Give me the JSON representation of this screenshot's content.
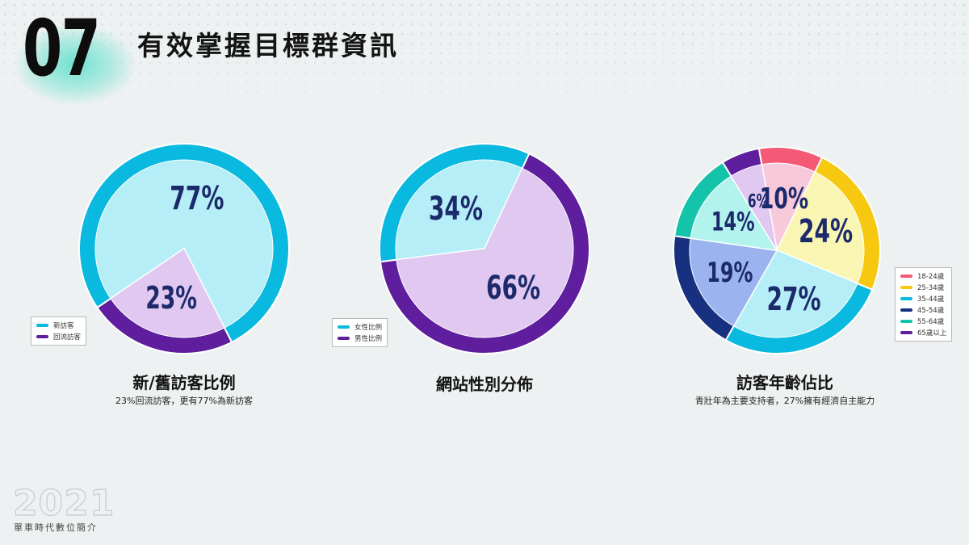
{
  "header": {
    "section_number": "07",
    "title": "有效掌握目標群資訊"
  },
  "footer": {
    "year": "2021",
    "tagline": "單車時代數位簡介"
  },
  "charts": [
    {
      "title": "新/舊訪客比例",
      "subtitle": "23%回流訪客，更有77%為新訪客",
      "legend": [
        "新訪客",
        "回流訪客"
      ]
    },
    {
      "title": "網站性別分佈",
      "subtitle": "",
      "legend": [
        "女性比例",
        "男性比例"
      ]
    },
    {
      "title": "訪客年齡佔比",
      "subtitle": "青壯年為主要支持者，27%擁有經濟自主能力",
      "legend": [
        "18-24歲",
        "25-34歲",
        "35-44歲",
        "45-54歲",
        "55-64歲",
        "65歲以上"
      ]
    }
  ],
  "chart_data": [
    {
      "type": "pie",
      "title": "新/舊訪客比例",
      "slices": [
        {
          "label": "新訪客",
          "value": 77,
          "value_label": "77%",
          "color": "#0ab9df",
          "fill": "#b5eef6"
        },
        {
          "label": "回流訪客",
          "value": 23,
          "value_label": "23%",
          "color": "#5e1e9e",
          "fill": "#e0c8f1"
        }
      ]
    },
    {
      "type": "pie",
      "title": "網站性別分佈",
      "slices": [
        {
          "label": "女性比例",
          "value": 34,
          "value_label": "34%",
          "color": "#0ab9df",
          "fill": "#b5eef6"
        },
        {
          "label": "男性比例",
          "value": 66,
          "value_label": "66%",
          "color": "#5e1e9e",
          "fill": "#e0c8f1"
        }
      ]
    },
    {
      "type": "pie",
      "title": "訪客年齡佔比",
      "slices": [
        {
          "label": "18-24歲",
          "value": 10,
          "value_label": "10%",
          "color": "#f45a75",
          "fill": "#f8c9d9"
        },
        {
          "label": "25-34歲",
          "value": 24,
          "value_label": "24%",
          "color": "#f7c810",
          "fill": "#f9f6b4"
        },
        {
          "label": "35-44歲",
          "value": 27,
          "value_label": "27%",
          "color": "#0ab9df",
          "fill": "#b5eef6"
        },
        {
          "label": "45-54歲",
          "value": 19,
          "value_label": "19%",
          "color": "#17307f",
          "fill": "#9bb4ef"
        },
        {
          "label": "55-64歲",
          "value": 14,
          "value_label": "14%",
          "color": "#14c3a9",
          "fill": "#b3f3ee"
        },
        {
          "label": "65歲以上",
          "value": 6,
          "value_label": "6%",
          "color": "#5e1e9e",
          "fill": "#e0c8f1"
        }
      ]
    }
  ]
}
